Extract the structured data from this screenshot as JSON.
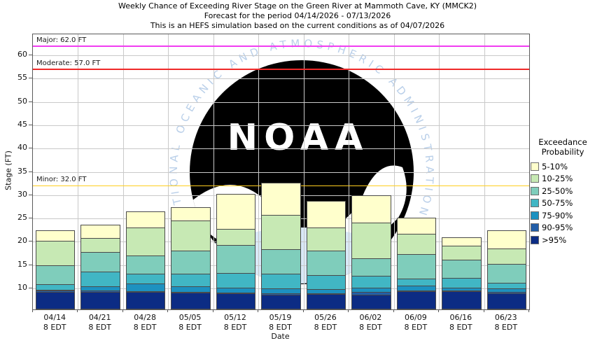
{
  "title": {
    "line1": "Weekly Chance of Exceeding River Stage on the Green River at Mammoth Cave, KY (MMCK2)",
    "line2": "Forecast for the period 04/14/2026 - 07/13/2026",
    "line3": "This is an HEFS simulation based on the current conditions as of 04/07/2026"
  },
  "watermark": {
    "logo_text": "NOAA",
    "arc_text": "NATIONAL OCEANIC AND ATMOSPHERIC ADMINISTRATION"
  },
  "chart_data": {
    "type": "bar",
    "stacked": true,
    "title_lines": [
      "Weekly Chance of Exceeding River Stage on the Green River at Mammoth Cave, KY (MMCK2)",
      "Forecast for the period 04/14/2026 - 07/13/2026",
      "This is an HEFS simulation based on the current conditions as of 04/07/2026"
    ],
    "xlabel": "Date",
    "ylabel": "Stage (FT)",
    "ylim": [
      5.5,
      64.5
    ],
    "yticks": [
      10,
      15,
      20,
      25,
      30,
      35,
      40,
      45,
      50,
      55,
      60
    ],
    "grid": true,
    "categories": [
      "04/14",
      "04/21",
      "04/28",
      "05/05",
      "05/12",
      "05/19",
      "05/26",
      "06/02",
      "06/09",
      "06/16",
      "06/23"
    ],
    "x_sublabel": "8 EDT",
    "baseline_ft": 5.5,
    "series_note": "cumulative_top_ft = stage (FT) at the top of each stacked exceedance band, bottom band first",
    "series": [
      {
        "name": ">95%",
        "color": "#0C2C84",
        "cumulative_top_ft": [
          9.3,
          9.3,
          9.2,
          9.1,
          8.9,
          8.7,
          8.8,
          8.7,
          9.4,
          9.4,
          9.0
        ]
      },
      {
        "name": "90-95%",
        "color": "#225EA8",
        "cumulative_top_ft": [
          9.5,
          9.5,
          9.4,
          9.3,
          9.1,
          8.9,
          9.0,
          9.2,
          9.5,
          9.5,
          9.2
        ]
      },
      {
        "name": "75-90%",
        "color": "#1D91C0",
        "cumulative_top_ft": [
          9.7,
          10.5,
          11.0,
          10.5,
          10.1,
          10.0,
          9.9,
          10.2,
          10.6,
          10.2,
          10.0
        ]
      },
      {
        "name": "50-75%",
        "color": "#41B6C4",
        "cumulative_top_ft": [
          10.9,
          13.6,
          13.1,
          13.2,
          13.3,
          13.2,
          12.9,
          12.7,
          12.1,
          12.2,
          11.2
        ]
      },
      {
        "name": "25-50%",
        "color": "#7FCDBB",
        "cumulative_top_ft": [
          15.0,
          17.8,
          17.1,
          18.1,
          19.3,
          18.4,
          18.1,
          16.5,
          17.3,
          16.2,
          15.2
        ]
      },
      {
        "name": "10-25%",
        "color": "#C7E9B4",
        "cumulative_top_ft": [
          20.2,
          20.8,
          23.0,
          24.6,
          22.8,
          25.7,
          23.1,
          24.1,
          21.7,
          19.2,
          18.6
        ]
      },
      {
        "name": "5-10%",
        "color": "#FFFFCC",
        "cumulative_top_ft": [
          22.4,
          23.7,
          26.5,
          27.4,
          30.2,
          32.7,
          28.7,
          29.9,
          25.2,
          20.9,
          22.4
        ]
      }
    ],
    "thresholds": [
      {
        "name": "Major",
        "stage_ft": 62.0,
        "label": "Major: 62.0 FT",
        "color": "#F13DF1"
      },
      {
        "name": "Moderate",
        "stage_ft": 57.0,
        "label": "Moderate: 57.0 FT",
        "color": "#EF2929"
      },
      {
        "name": "Minor",
        "stage_ft": 32.0,
        "label": "Minor: 32.0 FT",
        "color": "#FFCE1F"
      }
    ],
    "legend": {
      "position": "right",
      "title_lines": [
        "Exceedance",
        "Probability"
      ],
      "items": [
        {
          "label": "5-10%",
          "color": "#FFFFCC"
        },
        {
          "label": "10-25%",
          "color": "#C7E9B4"
        },
        {
          "label": "25-50%",
          "color": "#7FCDBB"
        },
        {
          "label": "50-75%",
          "color": "#41B6C4"
        },
        {
          "label": "75-90%",
          "color": "#1D91C0"
        },
        {
          "label": "90-95%",
          "color": "#225EA8"
        },
        {
          "label": ">95%",
          "color": "#0C2C84"
        }
      ]
    }
  }
}
